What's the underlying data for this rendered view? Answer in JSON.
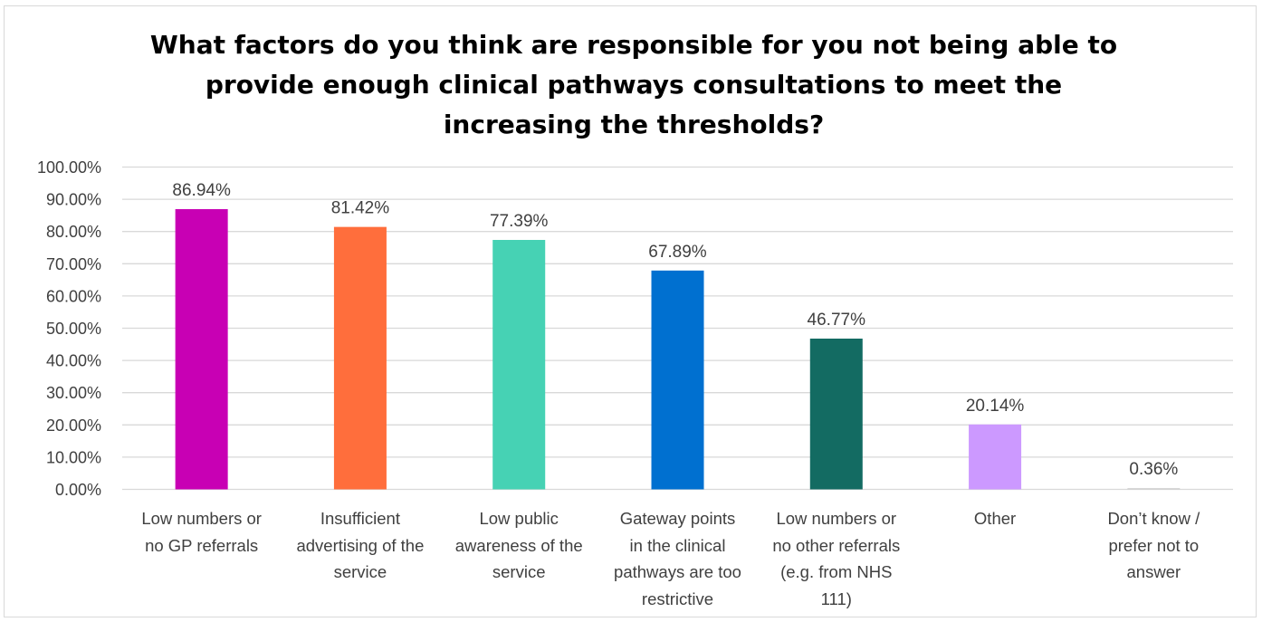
{
  "chart_data": {
    "type": "bar",
    "title_lines": [
      "What factors do you think are responsible for you not being able to",
      "provide enough clinical pathways consultations to meet the",
      "increasing the thresholds?"
    ],
    "categories": [
      [
        "Low numbers or",
        "no GP referrals"
      ],
      [
        "Insufficient",
        "advertising of the",
        "service"
      ],
      [
        "Low public",
        "awareness of the",
        "service"
      ],
      [
        "Gateway points",
        "in the clinical",
        "pathways are too",
        "restrictive"
      ],
      [
        "Low numbers or",
        "no other referrals",
        "(e.g. from NHS",
        "111)"
      ],
      [
        "Other"
      ],
      [
        "Don’t know /",
        "prefer not to",
        "answer"
      ]
    ],
    "values": [
      86.94,
      81.42,
      77.39,
      67.89,
      46.77,
      20.14,
      0.36
    ],
    "data_labels": [
      "86.94%",
      "81.42%",
      "77.39%",
      "67.89%",
      "46.77%",
      "20.14%",
      "0.36%"
    ],
    "colors": [
      "#c800b4",
      "#ff6e3c",
      "#46d2b4",
      "#0070d0",
      "#136b62",
      "#cc99ff",
      "#cccccc"
    ],
    "ylim": [
      0,
      100
    ],
    "yticks": [
      "0.00%",
      "10.00%",
      "20.00%",
      "30.00%",
      "40.00%",
      "50.00%",
      "60.00%",
      "70.00%",
      "80.00%",
      "90.00%",
      "100.00%"
    ],
    "grid": true,
    "gridline_color": "#d9d9d9",
    "legend": "none"
  }
}
